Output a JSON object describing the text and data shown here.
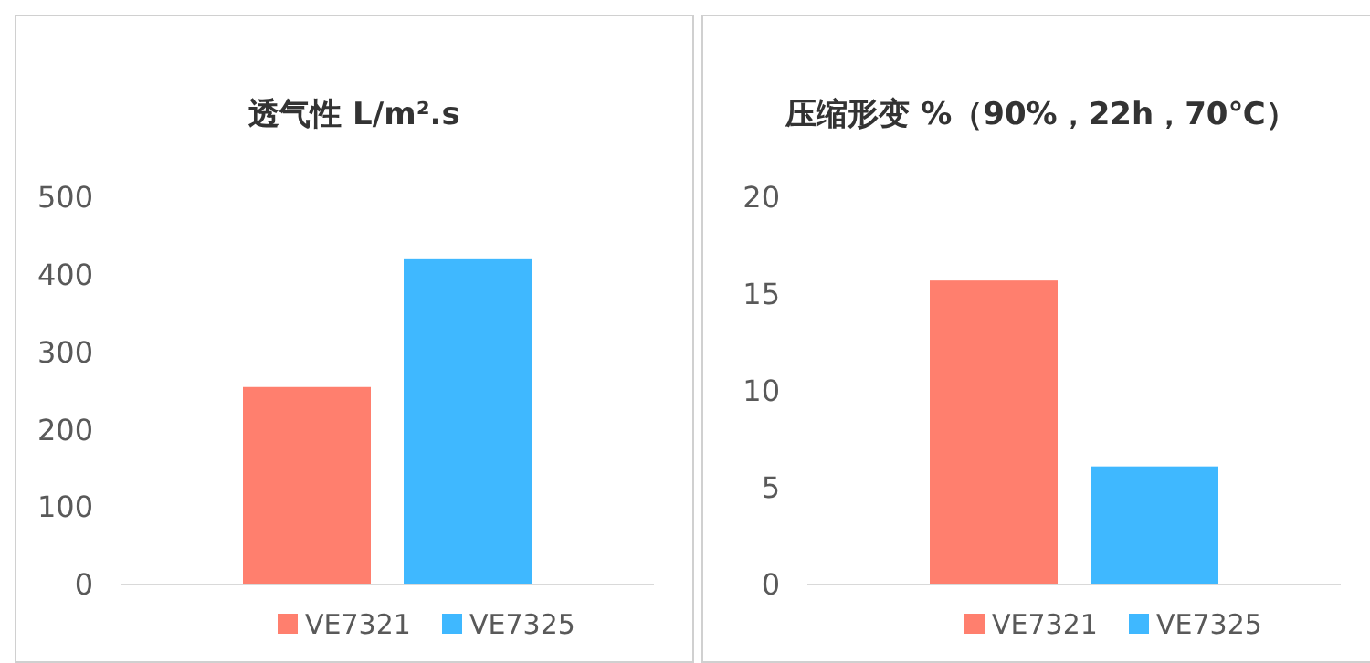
{
  "chart_data": [
    {
      "type": "bar",
      "title": "透气性 L/m².s",
      "categories": [
        null
      ],
      "ylim": [
        0,
        500
      ],
      "yticks": [
        0,
        100,
        200,
        300,
        400,
        500
      ],
      "grid": false,
      "legend": "bottom",
      "series": [
        {
          "name": "VE7321",
          "color": "#ff7f6e",
          "values": [
            255
          ]
        },
        {
          "name": "VE7325",
          "color": "#3fb8ff",
          "values": [
            420
          ]
        }
      ]
    },
    {
      "type": "bar",
      "title": "压缩形变 %（90%，22h，70℃）",
      "categories": [
        null
      ],
      "ylim": [
        0,
        20
      ],
      "yticks": [
        0,
        5,
        10,
        15,
        20
      ],
      "grid": false,
      "legend": "bottom",
      "series": [
        {
          "name": "VE7321",
          "color": "#ff7f6e",
          "values": [
            15.7
          ]
        },
        {
          "name": "VE7325",
          "color": "#3fb8ff",
          "values": [
            6.1
          ]
        }
      ]
    }
  ]
}
